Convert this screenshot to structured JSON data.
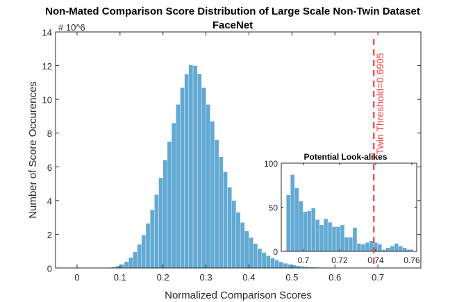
{
  "chart_data": [
    {
      "type": "bar",
      "title": "Non-Mated Comparison Score Distribution of Large Scale Non-Twin Dataset",
      "subtitle": "FaceNet",
      "xlabel": "Normalized Comparison Scores",
      "ylabel": "Number of Score Occurences",
      "y_multiplier": "# 10^6",
      "xlim": [
        -0.05,
        0.8
      ],
      "ylim": [
        0,
        14
      ],
      "xticks": [
        0,
        0.1,
        0.2,
        0.3,
        0.4,
        0.5,
        0.6,
        0.7
      ],
      "yticks": [
        0,
        2,
        4,
        6,
        8,
        10,
        12,
        14
      ],
      "bin_width": 0.01,
      "bin_starts": [
        0.05,
        0.06,
        0.07,
        0.08,
        0.09,
        0.1,
        0.11,
        0.12,
        0.13,
        0.14,
        0.15,
        0.16,
        0.17,
        0.18,
        0.19,
        0.2,
        0.21,
        0.22,
        0.23,
        0.24,
        0.25,
        0.26,
        0.27,
        0.28,
        0.29,
        0.3,
        0.31,
        0.32,
        0.33,
        0.34,
        0.35,
        0.36,
        0.37,
        0.38,
        0.39,
        0.4,
        0.41,
        0.42,
        0.43,
        0.44,
        0.45,
        0.46,
        0.47,
        0.48,
        0.49,
        0.5,
        0.51,
        0.52,
        0.53,
        0.54,
        0.55,
        0.56,
        0.57,
        0.58,
        0.59,
        0.6,
        0.61,
        0.62,
        0.63,
        0.64,
        0.65,
        0.66,
        0.67,
        0.68,
        0.69,
        0.7,
        0.71,
        0.72,
        0.73,
        0.74,
        0.75,
        0.76,
        0.77
      ],
      "values": [
        0.005,
        0.01,
        0.03,
        0.06,
        0.12,
        0.22,
        0.38,
        0.62,
        0.95,
        1.4,
        1.95,
        2.65,
        3.45,
        4.35,
        5.35,
        6.4,
        7.5,
        8.6,
        9.7,
        10.7,
        11.5,
        12.05,
        12.0,
        11.5,
        10.7,
        9.7,
        8.7,
        7.6,
        6.6,
        5.7,
        4.8,
        4.0,
        3.3,
        2.7,
        2.2,
        1.8,
        1.45,
        1.15,
        0.92,
        0.73,
        0.58,
        0.46,
        0.36,
        0.28,
        0.22,
        0.17,
        0.13,
        0.1,
        0.08,
        0.06,
        0.045,
        0.035,
        0.025,
        0.02,
        0.015,
        0.01,
        0.008,
        0.006,
        0.004,
        0.003,
        0.002,
        0.002,
        0.001,
        0.001,
        0.001,
        0.0005,
        0.0004,
        0.0003,
        0.0002,
        0.0001,
        0.0001,
        0.0001,
        5e-05
      ],
      "color": "#62A9D3",
      "threshold": {
        "value": 0.6905,
        "label": "Twin Threshold=0.6905",
        "color": "#FF3B3B"
      }
    },
    {
      "type": "bar",
      "title": "Potential Look-alikes",
      "xlim": [
        0.6877,
        0.7627
      ],
      "ylim": [
        0,
        100
      ],
      "xticks": [
        0.7,
        0.72,
        0.74,
        0.76
      ],
      "yticks": [
        0,
        50,
        100
      ],
      "bin_start": 0.6905,
      "bin_width": 0.0023,
      "values": [
        64,
        87,
        72,
        57,
        45,
        46,
        49,
        36,
        30,
        37,
        33,
        28,
        28,
        30,
        16,
        16,
        27,
        9,
        8,
        10,
        12,
        10,
        8,
        2,
        4,
        6,
        9,
        6,
        4,
        2
      ],
      "color": "#62A9D3"
    }
  ]
}
